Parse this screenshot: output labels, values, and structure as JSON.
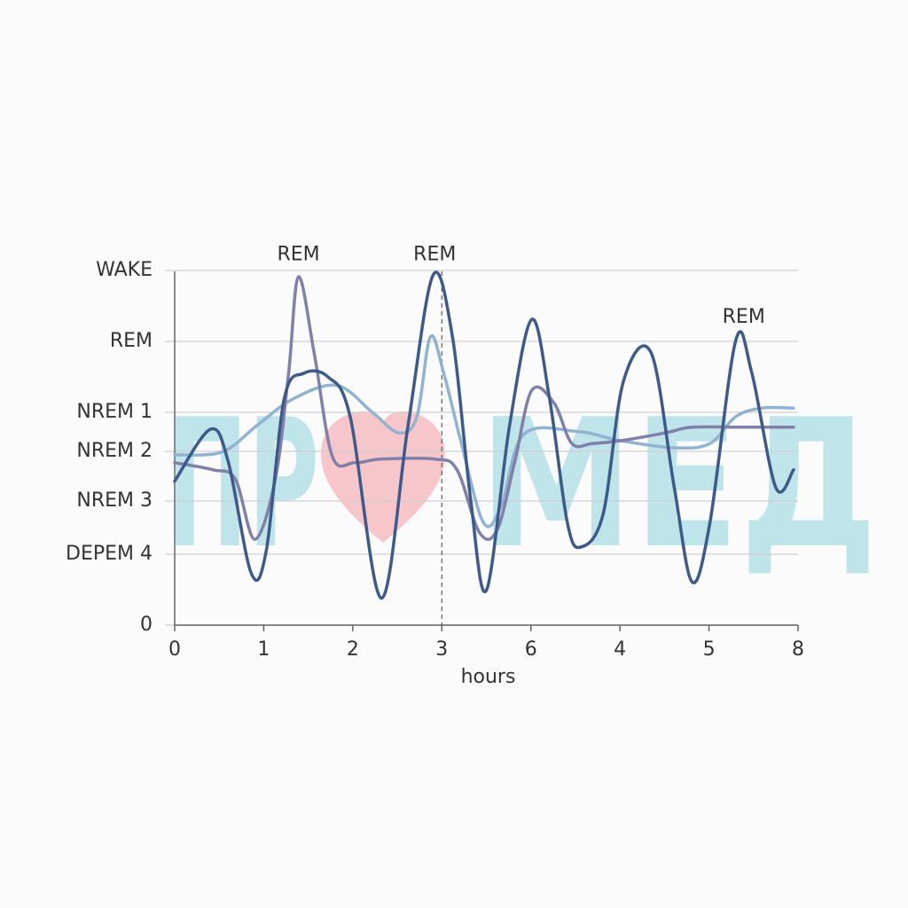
{
  "chart_data": {
    "type": "line",
    "x_label": "hours",
    "xlim": [
      0,
      7
    ],
    "xticks": [
      0,
      1,
      2,
      3,
      {
        "value": 4,
        "label": "6"
      },
      {
        "value": 5,
        "label": "4"
      },
      {
        "value": 6,
        "label": "5"
      },
      {
        "value": 7,
        "label": "8"
      }
    ],
    "ylim": [
      0,
      5.1
    ],
    "yticks": [
      {
        "value": 5,
        "label": "WAKE"
      },
      {
        "value": 4,
        "label": "REM"
      },
      {
        "value": 3,
        "label": "NREM 1"
      },
      {
        "value": 2.45,
        "label": "NREM 2"
      },
      {
        "value": 1.75,
        "label": "NREM 3"
      },
      {
        "value": 1,
        "label": "DEPEM 4"
      },
      0
    ],
    "grid": true,
    "vline": 3,
    "annotations": [
      {
        "text": "REM",
        "x": 1.39,
        "y": 5.22
      },
      {
        "text": "REM",
        "x": 2.92,
        "y": 5.22
      },
      {
        "text": "REM",
        "x": 6.39,
        "y": 4.34
      }
    ],
    "watermark": [
      "ПР",
      "МЕД"
    ],
    "series": [
      {
        "color": "#3d5a8a",
        "x": [
          0,
          0.4,
          0.6,
          0.86,
          1.03,
          1.23,
          1.45,
          1.72,
          1.97,
          2.32,
          2.62,
          2.9,
          3.12,
          3.32,
          3.5,
          3.76,
          4.01,
          4.21,
          4.41,
          4.56,
          4.81,
          5.04,
          5.35,
          5.61,
          5.81,
          6.01,
          6.3,
          6.48,
          6.75,
          6.95
        ],
        "values": [
          2.03,
          2.76,
          2.31,
          0.73,
          1.06,
          3.19,
          3.55,
          3.5,
          2.94,
          0.38,
          2.81,
          4.93,
          4.06,
          1.81,
          0.49,
          2.81,
          4.31,
          3.19,
          1.44,
          1.1,
          1.56,
          3.44,
          3.84,
          1.94,
          0.61,
          1.44,
          4.01,
          3.56,
          1.94,
          2.19
        ]
      },
      {
        "color": "#8080a8",
        "x": [
          0,
          0.43,
          0.68,
          0.9,
          1.13,
          1.28,
          1.39,
          1.57,
          1.77,
          2.02,
          2.32,
          2.92,
          3.17,
          3.42,
          3.62,
          3.82,
          4.01,
          4.26,
          4.46,
          4.69,
          5.01,
          5.51,
          5.81,
          6.4,
          6.95
        ],
        "values": [
          2.29,
          2.19,
          2.06,
          1.21,
          2.06,
          3.56,
          4.91,
          3.81,
          2.38,
          2.29,
          2.34,
          2.34,
          2.19,
          1.31,
          1.34,
          2.31,
          3.31,
          3.13,
          2.56,
          2.56,
          2.6,
          2.71,
          2.79,
          2.79,
          2.79
        ]
      },
      {
        "color": "#8fb3d0",
        "x": [
          0,
          0.53,
          0.92,
          1.33,
          1.82,
          2.22,
          2.52,
          2.72,
          2.87,
          3.02,
          3.22,
          3.47,
          3.67,
          3.92,
          4.52,
          5.01,
          5.61,
          6.01,
          6.3,
          6.6,
          6.95
        ],
        "values": [
          2.4,
          2.44,
          2.81,
          3.19,
          3.38,
          3.0,
          2.71,
          2.94,
          4.06,
          3.56,
          2.56,
          1.44,
          1.69,
          2.69,
          2.73,
          2.6,
          2.5,
          2.56,
          2.94,
          3.06,
          3.06
        ]
      }
    ]
  }
}
